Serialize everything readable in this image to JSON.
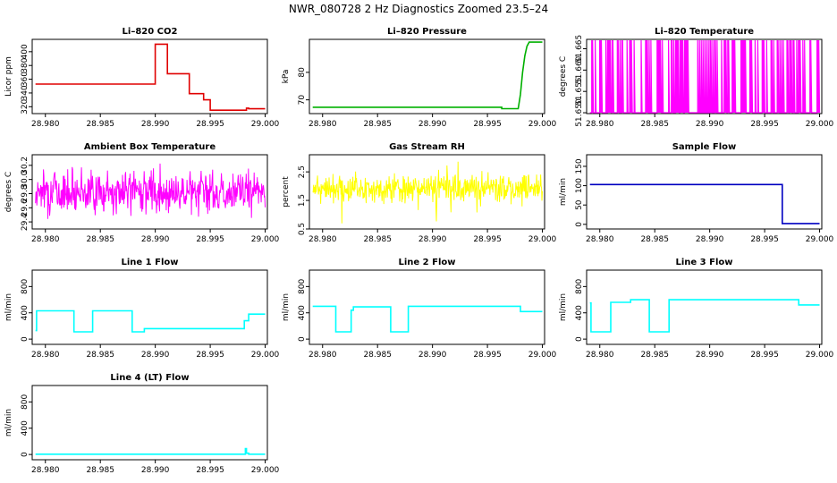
{
  "figure": {
    "title": "NWR_080728  2 Hz Diagnostics Zoomed 23.5–24"
  },
  "chart_data": [
    {
      "id": "co2",
      "type": "line",
      "title": "Li–820 CO2",
      "xlabel": "",
      "ylabel": "Licor ppm",
      "color": "#e00000",
      "xlim": [
        28.9788,
        29.0002
      ],
      "ylim": [
        310,
        418
      ],
      "xticks": [
        "28.980",
        "28.985",
        "28.990",
        "28.995",
        "29.000"
      ],
      "yticks": [
        "320",
        "340",
        "360",
        "380",
        "400"
      ],
      "yticks_rotated": true,
      "series": [
        {
          "x": [
            28.9791,
            28.99,
            28.99,
            28.9911,
            28.9911,
            28.9931,
            28.9931,
            28.9944,
            28.9944,
            28.995,
            28.995,
            28.9983,
            28.9983,
            28.9985,
            28.9985,
            29.0
          ],
          "y": [
            353,
            353,
            411,
            411,
            368,
            368,
            339,
            339,
            330,
            330,
            315,
            315,
            318,
            318,
            317,
            317
          ]
        }
      ]
    },
    {
      "id": "pressure",
      "type": "line",
      "title": "Li–820 Pressure",
      "xlabel": "",
      "ylabel": "kPa",
      "color": "#00b000",
      "xlim": [
        28.9788,
        29.0002
      ],
      "ylim": [
        65,
        92
      ],
      "xticks": [
        "28.980",
        "28.985",
        "28.990",
        "28.995",
        "29.000"
      ],
      "yticks": [
        "70",
        "80"
      ],
      "yticks_rotated": true,
      "series": [
        {
          "x": [
            28.9791,
            28.9963,
            28.9963,
            28.9978,
            28.998,
            28.9982,
            28.9984,
            28.9986,
            28.9988,
            29.0
          ],
          "y": [
            67.3,
            67.3,
            66.8,
            66.8,
            72,
            80,
            86,
            89.5,
            91,
            91
          ]
        }
      ]
    },
    {
      "id": "temperature",
      "type": "line",
      "title": "Li–820 Temperature",
      "xlabel": "",
      "ylabel": "degrees C",
      "color": "#ff00ff",
      "xlim": [
        28.9788,
        29.0002
      ],
      "ylim": [
        51.6498,
        51.6672
      ],
      "xticks": [
        "28.980",
        "28.985",
        "28.990",
        "28.995",
        "29.000"
      ],
      "yticks": [
        "51.650",
        "51.655",
        "51.660",
        "51.665"
      ],
      "yticks_rotated": true,
      "pattern": "binary",
      "low": 51.65,
      "high": 51.667,
      "noise_seed": 3
    },
    {
      "id": "ambient",
      "type": "line",
      "title": "Ambient Box Temperature",
      "xlabel": "",
      "ylabel": "degrees C",
      "color": "#ff00ff",
      "xlim": [
        28.9788,
        29.0002
      ],
      "ylim": [
        29.3,
        30.35
      ],
      "xticks": [
        "28.980",
        "28.985",
        "28.990",
        "28.995",
        "29.000"
      ],
      "yticks": [
        "29.4",
        "29.6",
        "29.8",
        "30.0",
        "30.2"
      ],
      "yticks_rotated": true,
      "pattern": "noise",
      "mean": 29.83,
      "spread": 0.13,
      "min": 29.32,
      "max": 30.33,
      "noise_seed": 7
    },
    {
      "id": "rh",
      "type": "line",
      "title": "Gas Stream RH",
      "xlabel": "",
      "ylabel": "percent",
      "color": "#ffff00",
      "xlim": [
        28.9788,
        29.0002
      ],
      "ylim": [
        0.5,
        3.1
      ],
      "xticks": [
        "28.980",
        "28.985",
        "28.990",
        "28.995",
        "29.000"
      ],
      "yticks": [
        "0.5",
        "1.5",
        "2.5"
      ],
      "yticks_rotated": true,
      "pattern": "noise",
      "mean": 1.9,
      "spread": 0.22,
      "min": 0.62,
      "max": 3.05,
      "noise_seed": 11
    },
    {
      "id": "sample_flow",
      "type": "line",
      "title": "Sample Flow",
      "xlabel": "",
      "ylabel": "ml/min",
      "color": "#0000c0",
      "xlim": [
        28.9788,
        29.0002
      ],
      "ylim": [
        -12,
        180
      ],
      "xticks": [
        "28.980",
        "28.985",
        "28.990",
        "28.995",
        "29.000"
      ],
      "yticks": [
        "0",
        "50",
        "100",
        "150"
      ],
      "yticks_rotated": true,
      "series": [
        {
          "x": [
            28.9791,
            28.9966,
            28.9966,
            29.0
          ],
          "y": [
            103,
            103,
            2,
            2
          ]
        }
      ]
    },
    {
      "id": "line1",
      "type": "line",
      "title": "Line 1 Flow",
      "xlabel": "",
      "ylabel": "ml/min",
      "color": "#00ffff",
      "xlim": [
        28.9788,
        29.0002
      ],
      "ylim": [
        -80,
        1050
      ],
      "xticks": [
        "28.980",
        "28.985",
        "28.990",
        "28.995",
        "29.000"
      ],
      "yticks": [
        "0",
        "400",
        "800"
      ],
      "yticks_rotated": true,
      "series": [
        {
          "x": [
            28.9791,
            28.9792,
            28.9792,
            28.9826,
            28.9826,
            28.9843,
            28.9843,
            28.9879,
            28.9879,
            28.989,
            28.989,
            28.9981,
            28.9981,
            28.9985,
            28.9985,
            29.0
          ],
          "y": [
            130,
            130,
            430,
            430,
            110,
            110,
            430,
            430,
            110,
            110,
            160,
            160,
            280,
            280,
            380,
            380
          ]
        }
      ]
    },
    {
      "id": "line2",
      "type": "line",
      "title": "Line 2 Flow",
      "xlabel": "",
      "ylabel": "ml/min",
      "color": "#00ffff",
      "xlim": [
        28.9788,
        29.0002
      ],
      "ylim": [
        -80,
        1050
      ],
      "xticks": [
        "28.980",
        "28.985",
        "28.990",
        "28.995",
        "29.000"
      ],
      "yticks": [
        "0",
        "400",
        "800"
      ],
      "yticks_rotated": true,
      "series": [
        {
          "x": [
            28.9791,
            28.9812,
            28.9812,
            28.9826,
            28.9826,
            28.9828,
            28.9828,
            28.9862,
            28.9862,
            28.9878,
            28.9878,
            28.998,
            28.998,
            29.0
          ],
          "y": [
            500,
            500,
            110,
            110,
            440,
            440,
            490,
            490,
            110,
            110,
            500,
            500,
            420,
            420
          ]
        }
      ]
    },
    {
      "id": "line3",
      "type": "line",
      "title": "Line 3 Flow",
      "xlabel": "",
      "ylabel": "ml/min",
      "color": "#00ffff",
      "xlim": [
        28.9788,
        29.0002
      ],
      "ylim": [
        -80,
        1050
      ],
      "xticks": [
        "28.980",
        "28.985",
        "28.990",
        "28.995",
        "29.000"
      ],
      "yticks": [
        "0",
        "400",
        "800"
      ],
      "yticks_rotated": true,
      "series": [
        {
          "x": [
            28.9791,
            28.9792,
            28.9792,
            28.981,
            28.981,
            28.9828,
            28.9828,
            28.9845,
            28.9845,
            28.9863,
            28.9863,
            28.9981,
            28.9981,
            29.0
          ],
          "y": [
            550,
            550,
            110,
            110,
            560,
            560,
            600,
            600,
            110,
            110,
            600,
            600,
            520,
            520
          ]
        }
      ]
    },
    {
      "id": "line4",
      "type": "line",
      "title": "Line 4 (LT) Flow",
      "xlabel": "",
      "ylabel": "ml/min",
      "color": "#00ffff",
      "xlim": [
        28.9788,
        29.0002
      ],
      "ylim": [
        -80,
        1050
      ],
      "xticks": [
        "28.980",
        "28.985",
        "28.990",
        "28.995",
        "29.000"
      ],
      "yticks": [
        "0",
        "400",
        "800"
      ],
      "yticks_rotated": true,
      "series": [
        {
          "x": [
            28.9791,
            28.9982,
            28.9982,
            28.9983,
            28.9983,
            28.9985,
            28.9985,
            29.0
          ],
          "y": [
            5,
            5,
            90,
            90,
            20,
            20,
            5,
            5
          ]
        }
      ]
    }
  ]
}
